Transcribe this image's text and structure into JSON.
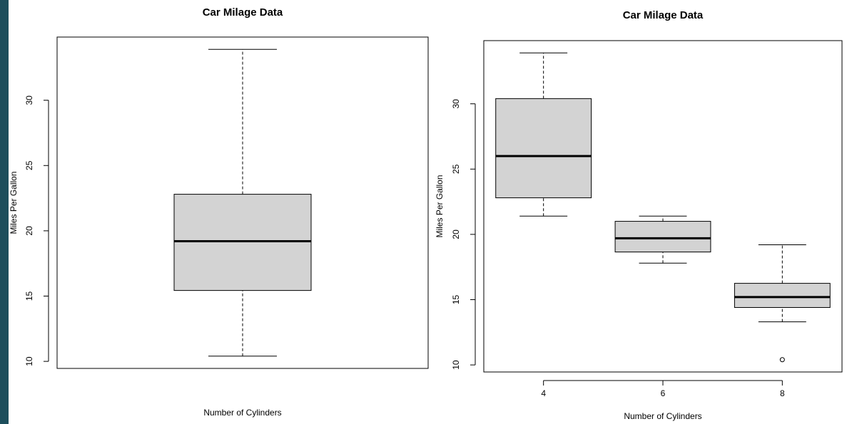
{
  "chart_data": [
    {
      "type": "box",
      "title": "Car Milage Data",
      "x_label": "Number of Cylinders",
      "y_label": "Miles Per Gallon",
      "categories": [
        null
      ],
      "whisker_low": [
        10.4
      ],
      "q1": [
        15.43
      ],
      "median": [
        19.2
      ],
      "q3": [
        22.8
      ],
      "whisker_high": [
        33.9
      ],
      "ylim": [
        9.46,
        34.84
      ],
      "yticks": [
        10,
        15,
        20,
        25,
        30
      ],
      "color": "#d3d3d3"
    },
    {
      "type": "box",
      "title": "Car Milage Data",
      "x_label": "Number of Cylinders",
      "y_label": "Miles Per Gallon",
      "categories": [
        "4",
        "6",
        "8"
      ],
      "whisker_low": [
        21.4,
        17.8,
        13.3
      ],
      "q1": [
        22.8,
        18.65,
        14.4
      ],
      "median": [
        26,
        19.7,
        15.2
      ],
      "q3": [
        30.4,
        21,
        16.25
      ],
      "whisker_high": [
        33.9,
        21.4,
        19.2
      ],
      "outliers": [
        [],
        [],
        [
          10.4
        ]
      ],
      "ylim": [
        9.46,
        34.84
      ],
      "yticks": [
        10,
        15,
        20,
        25,
        30
      ],
      "color": "#d3d3d3"
    }
  ]
}
